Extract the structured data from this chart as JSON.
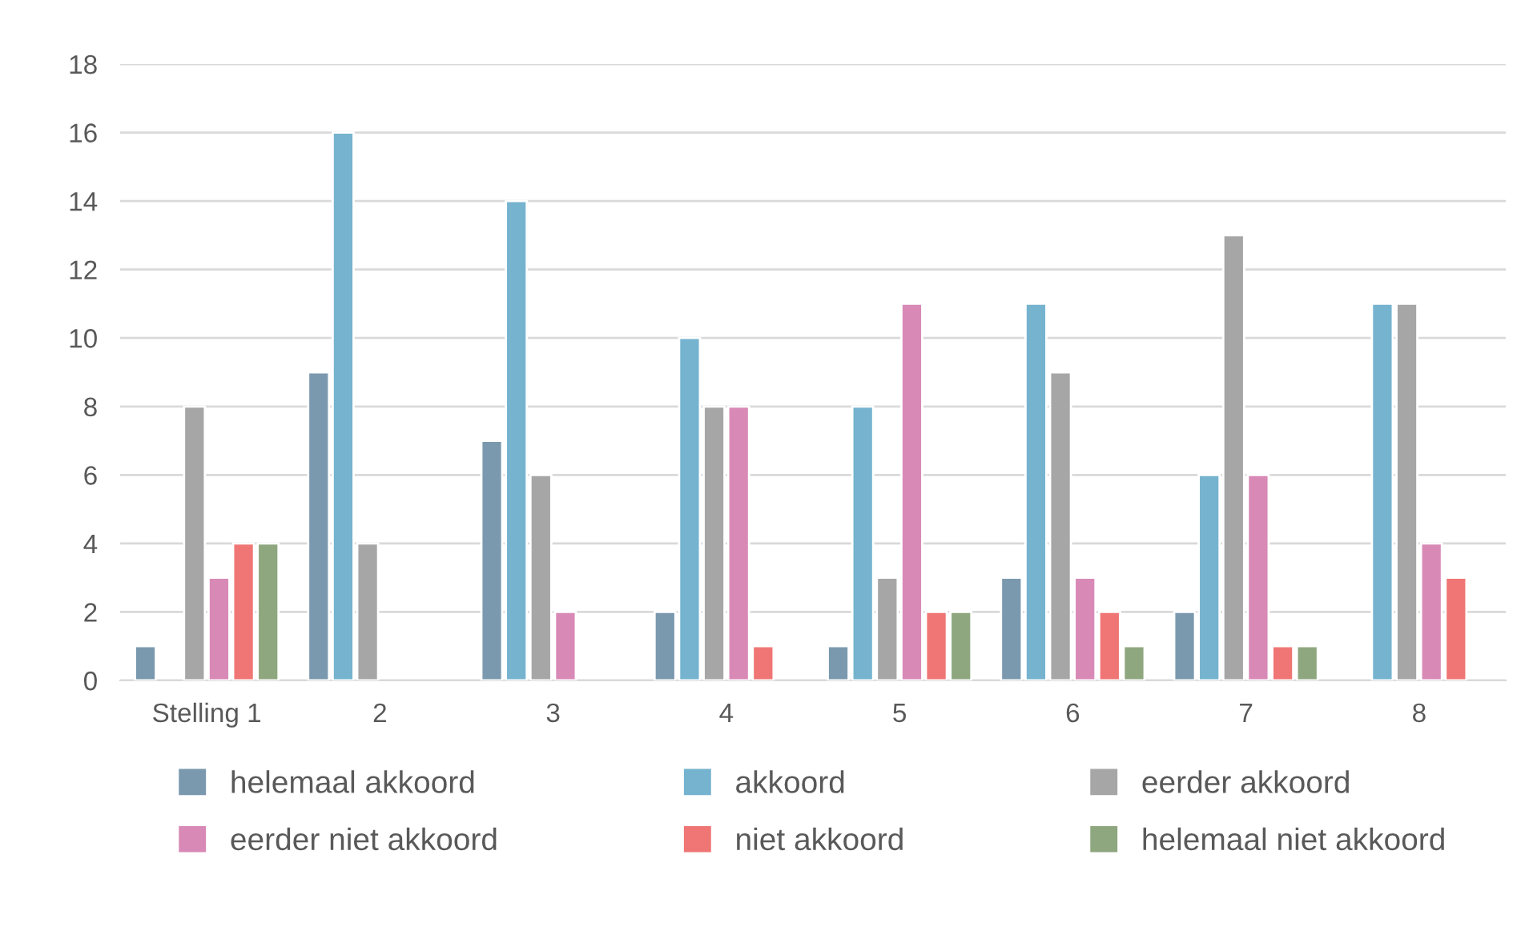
{
  "chart_data": {
    "type": "bar",
    "categories": [
      "Stelling 1",
      "2",
      "3",
      "4",
      "5",
      "6",
      "7",
      "8"
    ],
    "series": [
      {
        "name": "helemaal akkoord",
        "color": "#7b99ae",
        "values": [
          1,
          9,
          7,
          2,
          1,
          3,
          2,
          null
        ]
      },
      {
        "name": "akkoord",
        "color": "#75b3cf",
        "values": [
          null,
          16,
          14,
          10,
          8,
          11,
          6,
          11
        ]
      },
      {
        "name": "eerder akkoord",
        "color": "#a6a6a6",
        "values": [
          8,
          4,
          6,
          8,
          3,
          9,
          13,
          11
        ]
      },
      {
        "name": "eerder niet akkoord",
        "color": "#d889b6",
        "values": [
          3,
          null,
          2,
          8,
          11,
          3,
          6,
          4
        ]
      },
      {
        "name": "niet akkoord",
        "color": "#ef7674",
        "values": [
          4,
          null,
          null,
          1,
          2,
          2,
          1,
          3
        ]
      },
      {
        "name": "helemaal niet akkoord",
        "color": "#8ea77f",
        "values": [
          4,
          null,
          null,
          null,
          2,
          1,
          1,
          null
        ]
      }
    ],
    "ylim": [
      0,
      18
    ],
    "yticks": [
      0,
      2,
      4,
      6,
      8,
      10,
      12,
      14,
      16,
      18
    ],
    "grid": "y",
    "legend": "bottom"
  }
}
